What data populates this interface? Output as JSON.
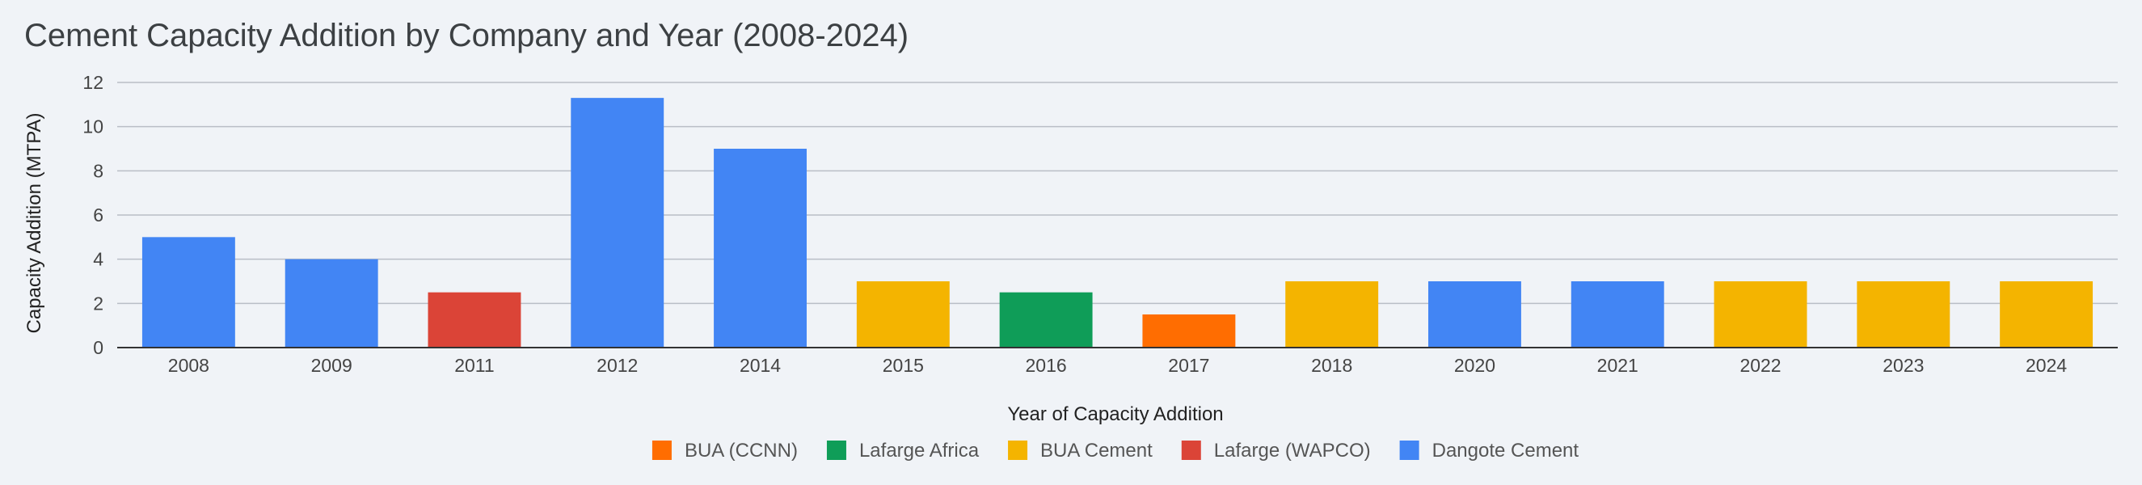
{
  "chart_data": {
    "type": "bar",
    "title": "Cement Capacity Addition by Company and Year (2008-2024)",
    "xlabel": "Year of Capacity Addition",
    "ylabel": "Capacity Addition (MTPA)",
    "ylim": [
      0,
      12
    ],
    "yticks": [
      0,
      2,
      4,
      6,
      8,
      10,
      12
    ],
    "categories": [
      "2008",
      "2009",
      "2011",
      "2012",
      "2014",
      "2015",
      "2016",
      "2017",
      "2018",
      "2020",
      "2021",
      "2022",
      "2023",
      "2024"
    ],
    "values": [
      5,
      4,
      2.5,
      11.3,
      9,
      3,
      2.5,
      1.5,
      3,
      3,
      3,
      3,
      3,
      3
    ],
    "companies": [
      "Dangote Cement",
      "Dangote Cement",
      "Lafarge (WAPCO)",
      "Dangote Cement",
      "Dangote Cement",
      "BUA Cement",
      "Lafarge Africa",
      "BUA (CCNN)",
      "BUA Cement",
      "Dangote Cement",
      "Dangote Cement",
      "BUA Cement",
      "BUA Cement",
      "BUA Cement"
    ],
    "legend": [
      {
        "name": "BUA (CCNN)",
        "color": "#ff6d01"
      },
      {
        "name": "Lafarge Africa",
        "color": "#0f9d58"
      },
      {
        "name": "BUA Cement",
        "color": "#f4b400"
      },
      {
        "name": "Lafarge (WAPCO)",
        "color": "#db4437"
      },
      {
        "name": "Dangote Cement",
        "color": "#4285f4"
      }
    ],
    "legend_position": "bottom-center",
    "grid": true
  }
}
